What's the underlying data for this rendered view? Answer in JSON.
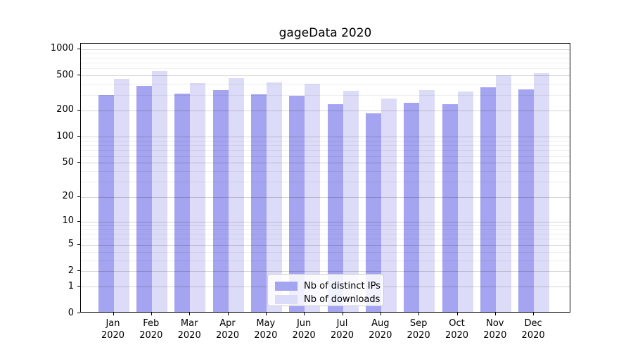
{
  "chart_data": {
    "type": "bar",
    "title": "gageData 2020",
    "categories": [
      "Jan",
      "Feb",
      "Mar",
      "Apr",
      "May",
      "Jun",
      "Jul",
      "Aug",
      "Sep",
      "Oct",
      "Nov",
      "Dec"
    ],
    "year_label": "2020",
    "series": [
      {
        "name": "Nb of distinct IPs",
        "color": "#a4a4f0",
        "values": [
          289,
          370,
          302,
          327,
          293,
          284,
          227,
          179,
          236,
          226,
          352,
          335
        ]
      },
      {
        "name": "Nb of downloads",
        "color": "#dcdcf8",
        "values": [
          442,
          541,
          398,
          447,
          400,
          385,
          321,
          262,
          331,
          319,
          488,
          509
        ]
      }
    ],
    "xlabel": "",
    "ylabel": "",
    "y_axis": {
      "scale": "log10(value+1)",
      "tick_labels": [
        "0",
        "1",
        "2",
        "5",
        "10",
        "20",
        "50",
        "100",
        "200",
        "500",
        "1000"
      ],
      "tick_values": [
        0,
        1,
        2,
        5,
        10,
        20,
        50,
        100,
        200,
        500,
        1000
      ],
      "minor_gridline_values": [
        3,
        4,
        6,
        7,
        8,
        9,
        30,
        40,
        60,
        70,
        80,
        90,
        300,
        400,
        600,
        700,
        800,
        900
      ],
      "ylim": [
        0,
        1135
      ]
    },
    "grid": true,
    "legend_position": "lower center"
  }
}
